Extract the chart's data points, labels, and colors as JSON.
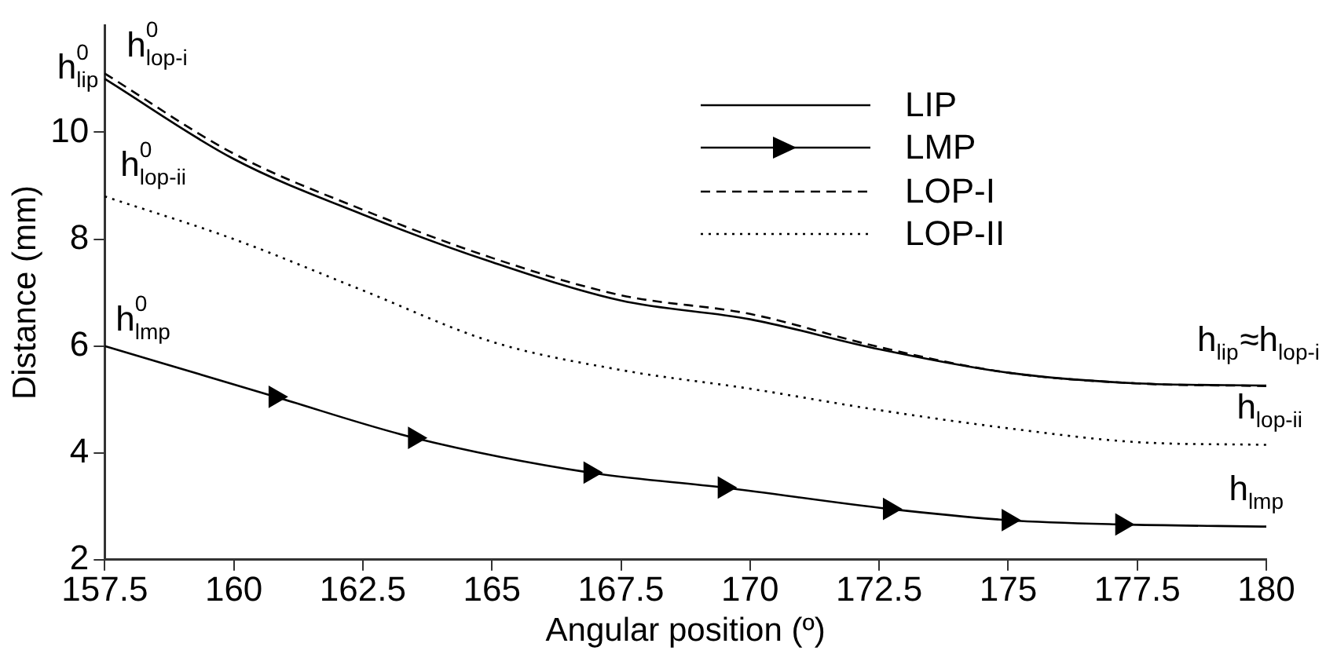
{
  "chart_data": {
    "type": "line",
    "xlabel": "Angular position (º)",
    "ylabel": "Distance (mm)",
    "xlim": [
      157.5,
      180
    ],
    "xticks": [
      157.5,
      160,
      162.5,
      165,
      167.5,
      170,
      172.5,
      175,
      177.5,
      180
    ],
    "ylim": [
      2,
      12
    ],
    "yticks": [
      2,
      4,
      6,
      8,
      10
    ],
    "grid": false,
    "legend": "top right",
    "marker": "none",
    "series": [
      {
        "name": "LIP",
        "color": "#000000",
        "line_style": "solid",
        "x": [
          157.5,
          160,
          162.5,
          165,
          167.5,
          170,
          172.5,
          175,
          177.5,
          180
        ],
        "values": [
          11.0,
          9.5,
          8.46,
          7.57,
          6.85,
          6.5,
          5.94,
          5.5,
          5.3,
          5.26
        ]
      },
      {
        "name": "LMP",
        "color": "#000000",
        "line_style": "solid",
        "marker": "triangle",
        "x": [
          157.5,
          160.8,
          163.5,
          166.9,
          169.5,
          172.7,
          175,
          177.2,
          180
        ],
        "values": [
          6.0,
          5.05,
          4.28,
          3.63,
          3.35,
          2.95,
          2.74,
          2.66,
          2.62
        ]
      },
      {
        "name": "LOP-I",
        "color": "#000000",
        "line_style": "dashed",
        "x": [
          157.5,
          160,
          162.5,
          165,
          167.5,
          170,
          172.5,
          175,
          177.5,
          180
        ],
        "values": [
          11.1,
          9.6,
          8.55,
          7.65,
          6.95,
          6.6,
          5.98,
          5.5,
          5.3,
          5.25
        ]
      },
      {
        "name": "LOP-II",
        "color": "#000000",
        "line_style": "dotted",
        "x": [
          157.5,
          160,
          162.5,
          165,
          167.5,
          170,
          172.5,
          175,
          177.5,
          180
        ],
        "values": [
          8.8,
          8.0,
          7.04,
          6.08,
          5.55,
          5.2,
          4.8,
          4.46,
          4.2,
          4.15
        ]
      }
    ],
    "annotations": [
      "h$^{0}$$_{lip}$",
      "h$^{0}$$_{lop-i}$",
      "h$^{0}$$_{lop-ii}$",
      "h$^{0}$$_{lmp}$",
      "h$_{lip}$≈h$_{lop-i}$",
      "h$_{lop-ii}$",
      "h$_{lmp}$"
    ]
  }
}
